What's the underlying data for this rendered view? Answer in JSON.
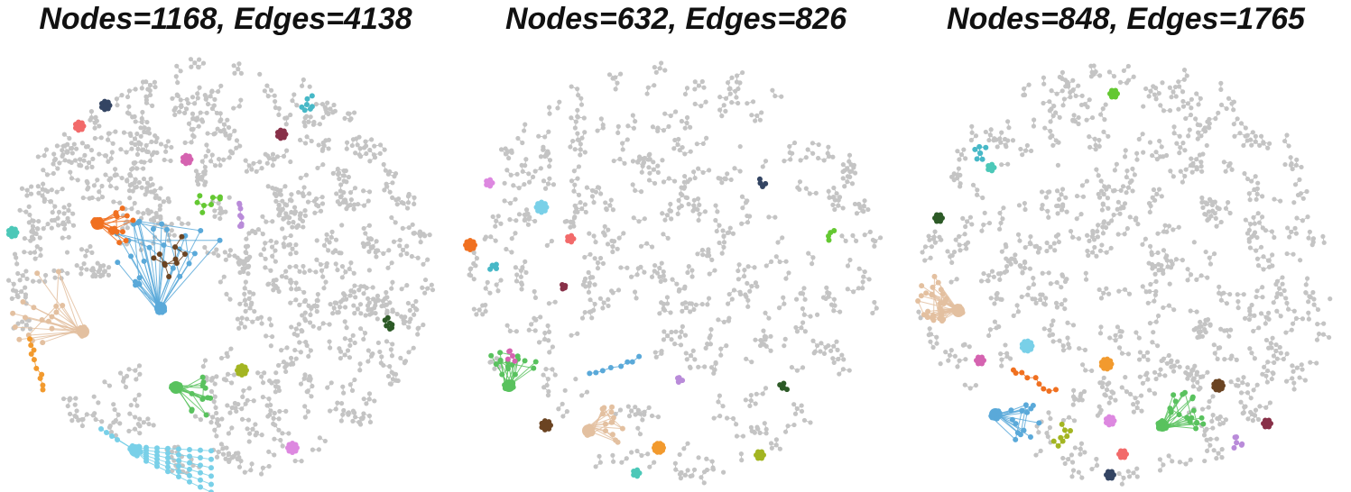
{
  "panels": [
    {
      "title": "Nodes=1168, Edges=4138",
      "background_color": "#c4c4c4",
      "clusters": [
        {
          "name": "lightblue-fan",
          "color": "#79d0e8"
        },
        {
          "name": "blue-star",
          "color": "#5aa9d9"
        },
        {
          "name": "tan-star",
          "color": "#e3c0a0"
        },
        {
          "name": "orange-chain",
          "color": "#f29a2e"
        },
        {
          "name": "darkorange-star",
          "color": "#f07020"
        },
        {
          "name": "green-star",
          "color": "#59c25e"
        },
        {
          "name": "brown-tree",
          "color": "#6b4422"
        },
        {
          "name": "lime-tree",
          "color": "#64c832"
        },
        {
          "name": "lavender-chain",
          "color": "#b98bd9"
        },
        {
          "name": "teal-tree",
          "color": "#47b8c7"
        },
        {
          "name": "navy-clump",
          "color": "#344563"
        },
        {
          "name": "red-clump",
          "color": "#f26a6a"
        },
        {
          "name": "pink-clump",
          "color": "#d563b0"
        },
        {
          "name": "maroon-clump",
          "color": "#883048"
        },
        {
          "name": "turquoise-clump",
          "color": "#4cc8b8"
        },
        {
          "name": "olive-clump",
          "color": "#a3b522"
        },
        {
          "name": "darkgreen-tree",
          "color": "#2d5a27"
        },
        {
          "name": "violet-clump",
          "color": "#dd88e0"
        }
      ]
    },
    {
      "title": "Nodes=632, Edges=826",
      "background_color": "#c4c4c4",
      "clusters": [
        {
          "name": "green-star",
          "color": "#59c25e"
        },
        {
          "name": "tan-star",
          "color": "#e3c0a0"
        },
        {
          "name": "blue-chain",
          "color": "#5aa9d9"
        },
        {
          "name": "orange-clump",
          "color": "#f29a2e"
        },
        {
          "name": "darkorange-clump",
          "color": "#f07020"
        },
        {
          "name": "skyblue-clump",
          "color": "#79d0e8"
        },
        {
          "name": "pink-tree",
          "color": "#d563b0"
        },
        {
          "name": "brown-clump",
          "color": "#6b4422"
        },
        {
          "name": "navy-tree",
          "color": "#344563"
        },
        {
          "name": "lime-tree",
          "color": "#64c832"
        },
        {
          "name": "red-clump",
          "color": "#f26a6a"
        },
        {
          "name": "maroon-tree",
          "color": "#883048"
        },
        {
          "name": "teal-tree",
          "color": "#47b8c7"
        },
        {
          "name": "lavender-tree",
          "color": "#b98bd9"
        },
        {
          "name": "darkgreen-tree",
          "color": "#2d5a27"
        },
        {
          "name": "olive-clump",
          "color": "#a3b522"
        },
        {
          "name": "turquoise-clump",
          "color": "#4cc8b8"
        },
        {
          "name": "violet-clump",
          "color": "#dd88e0"
        }
      ]
    },
    {
      "title": "Nodes=848, Edges=1765",
      "background_color": "#c4c4c4",
      "clusters": [
        {
          "name": "tan-star",
          "color": "#e3c0a0"
        },
        {
          "name": "darkorange-chain",
          "color": "#f07020"
        },
        {
          "name": "green-star",
          "color": "#59c25e"
        },
        {
          "name": "blue-star",
          "color": "#5aa9d9"
        },
        {
          "name": "orange-clump",
          "color": "#f29a2e"
        },
        {
          "name": "skyblue-clump",
          "color": "#79d0e8"
        },
        {
          "name": "brown-clump",
          "color": "#6b4422"
        },
        {
          "name": "olive-tree",
          "color": "#a3b522"
        },
        {
          "name": "violet-clump",
          "color": "#dd88e0"
        },
        {
          "name": "lavender-tree",
          "color": "#b98bd9"
        },
        {
          "name": "maroon-clump",
          "color": "#883048"
        },
        {
          "name": "red-clump",
          "color": "#f26a6a"
        },
        {
          "name": "navy-clump",
          "color": "#344563"
        },
        {
          "name": "pink-clump",
          "color": "#d563b0"
        },
        {
          "name": "teal-tree",
          "color": "#47b8c7"
        },
        {
          "name": "darkgreen-clump",
          "color": "#2d5a27"
        },
        {
          "name": "lime-clump",
          "color": "#64c832"
        },
        {
          "name": "turquoise-clump",
          "color": "#4cc8b8"
        }
      ]
    }
  ]
}
